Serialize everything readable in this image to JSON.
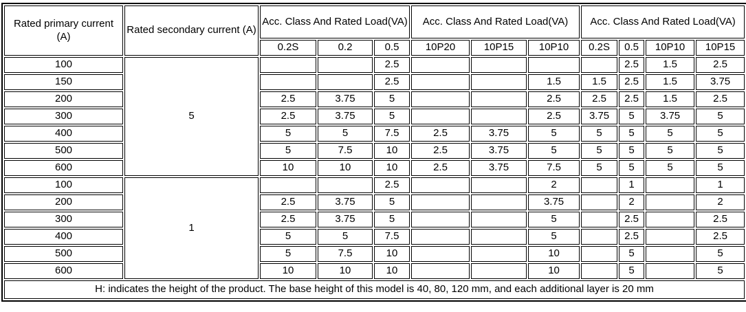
{
  "table": {
    "header": {
      "primary_label": "Rated primary current (A)",
      "secondary_label": "Rated secondary current (A)",
      "groups": [
        {
          "title": "Acc. Class And Rated Load(VA)",
          "cols": [
            "0.2S",
            "0.2",
            "0.5"
          ]
        },
        {
          "title": "Acc. Class And Rated Load(VA)",
          "cols": [
            "10P20",
            "10P15",
            "10P10"
          ]
        },
        {
          "title": "Acc. Class And Rated Load(VA)",
          "cols": [
            "0.2S",
            "0.5",
            "10P10",
            "10P15"
          ]
        }
      ]
    },
    "sections": [
      {
        "secondary_current": "5",
        "rows": [
          {
            "primary": "100",
            "values": [
              "",
              "",
              "2.5",
              "",
              "",
              "",
              "",
              "2.5",
              "1.5",
              "2.5"
            ]
          },
          {
            "primary": "150",
            "values": [
              "",
              "",
              "2.5",
              "",
              "",
              "1.5",
              "1.5",
              "2.5",
              "1.5",
              "3.75"
            ]
          },
          {
            "primary": "200",
            "values": [
              "2.5",
              "3.75",
              "5",
              "",
              "",
              "2.5",
              "2.5",
              "2.5",
              "1.5",
              "2.5"
            ]
          },
          {
            "primary": "300",
            "values": [
              "2.5",
              "3.75",
              "5",
              "",
              "",
              "2.5",
              "3.75",
              "5",
              "3.75",
              "5"
            ]
          },
          {
            "primary": "400",
            "values": [
              "5",
              "5",
              "7.5",
              "2.5",
              "3.75",
              "5",
              "5",
              "5",
              "5",
              "5"
            ]
          },
          {
            "primary": "500",
            "values": [
              "5",
              "7.5",
              "10",
              "2.5",
              "3.75",
              "5",
              "5",
              "5",
              "5",
              "5"
            ]
          },
          {
            "primary": "600",
            "values": [
              "10",
              "10",
              "10",
              "2.5",
              "3.75",
              "7.5",
              "5",
              "5",
              "5",
              "5"
            ]
          }
        ]
      },
      {
        "secondary_current": "1",
        "rows": [
          {
            "primary": "100",
            "values": [
              "",
              "",
              "2.5",
              "",
              "",
              "2",
              "",
              "1",
              "",
              "1"
            ]
          },
          {
            "primary": "200",
            "values": [
              "2.5",
              "3.75",
              "5",
              "",
              "",
              "3.75",
              "",
              "2",
              "",
              "2"
            ]
          },
          {
            "primary": "300",
            "values": [
              "2.5",
              "3.75",
              "5",
              "",
              "",
              "5",
              "",
              "2.5",
              "",
              "2.5"
            ]
          },
          {
            "primary": "400",
            "values": [
              "5",
              "5",
              "7.5",
              "",
              "",
              "5",
              "",
              "2.5",
              "",
              "2.5"
            ]
          },
          {
            "primary": "500",
            "values": [
              "5",
              "7.5",
              "10",
              "",
              "",
              "10",
              "",
              "5",
              "",
              "5"
            ]
          },
          {
            "primary": "600",
            "values": [
              "10",
              "10",
              "10",
              "",
              "",
              "10",
              "",
              "5",
              "",
              "5"
            ]
          }
        ]
      }
    ],
    "footer_note": "H: indicates the height of the product. The base height of this model is 40, 80, 120 mm, and each additional layer is 20 mm"
  }
}
